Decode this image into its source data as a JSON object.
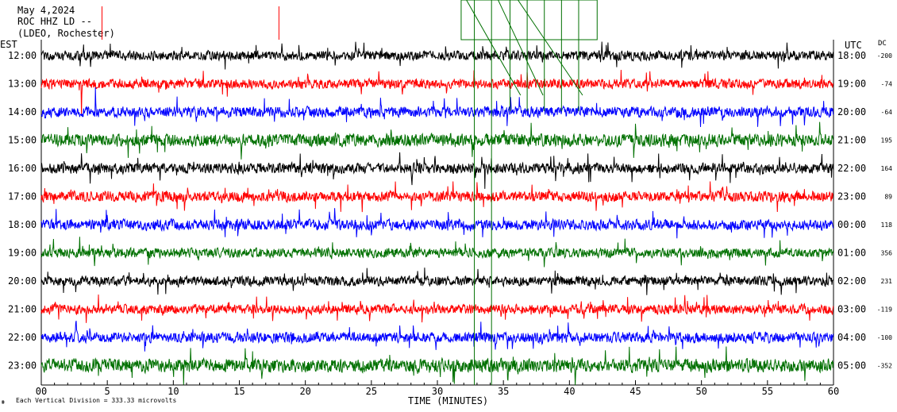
{
  "header": {
    "date": "May 4,2024",
    "station": "ROC HHZ LD --",
    "network": "(LDEO, Rochester)"
  },
  "left_tz": "EST",
  "right_tz": "UTC",
  "dc_header": "DC",
  "footer": {
    "note": "Each Vertical Division = 333.33 microvolts",
    "xlabel": "TIME (MINUTES)"
  },
  "chart_data": {
    "type": "line",
    "title": "May 4,2024",
    "xlabel": "TIME (MINUTES)",
    "xlim": [
      0,
      60
    ],
    "x_ticks": [
      "00",
      "5",
      "10",
      "15",
      "20",
      "25",
      "30",
      "35",
      "40",
      "45",
      "50",
      "55",
      "60"
    ],
    "colors": [
      "#000000",
      "#ff0000",
      "#0000ff",
      "#007000"
    ],
    "series": [
      {
        "est": "12:00",
        "utc": "18:00",
        "dc": "-200",
        "color": "#000000",
        "amp": 1.0
      },
      {
        "est": "13:00",
        "utc": "19:00",
        "dc": "-74",
        "color": "#ff0000",
        "amp": 1.0
      },
      {
        "est": "14:00",
        "utc": "20:00",
        "dc": "-64",
        "color": "#0000ff",
        "amp": 1.1
      },
      {
        "est": "15:00",
        "utc": "21:00",
        "dc": "195",
        "color": "#007000",
        "amp": 1.3
      },
      {
        "est": "16:00",
        "utc": "22:00",
        "dc": "164",
        "color": "#000000",
        "amp": 1.1
      },
      {
        "est": "17:00",
        "utc": "23:00",
        "dc": "89",
        "color": "#ff0000",
        "amp": 1.1
      },
      {
        "est": "18:00",
        "utc": "00:00",
        "dc": "118",
        "color": "#0000ff",
        "amp": 1.1
      },
      {
        "est": "19:00",
        "utc": "01:00",
        "dc": "356",
        "color": "#007000",
        "amp": 1.0
      },
      {
        "est": "20:00",
        "utc": "02:00",
        "dc": "231",
        "color": "#000000",
        "amp": 1.0
      },
      {
        "est": "21:00",
        "utc": "03:00",
        "dc": "-119",
        "color": "#ff0000",
        "amp": 1.0
      },
      {
        "est": "22:00",
        "utc": "04:00",
        "dc": "-100",
        "color": "#0000ff",
        "amp": 1.1
      },
      {
        "est": "23:00",
        "utc": "05:00",
        "dc": "-352",
        "color": "#007000",
        "amp": 1.4
      }
    ]
  }
}
